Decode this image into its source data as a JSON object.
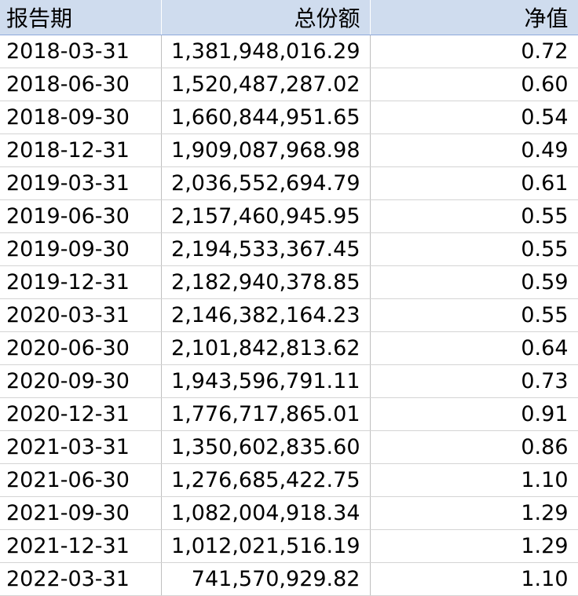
{
  "columns": [
    "报告期",
    "总份额",
    "净值"
  ],
  "rows": [
    [
      "2018-03-31",
      "1,381,948,016.29",
      "0.72"
    ],
    [
      "2018-06-30",
      "1,520,487,287.02",
      "0.60"
    ],
    [
      "2018-09-30",
      "1,660,844,951.65",
      "0.54"
    ],
    [
      "2018-12-31",
      "1,909,087,968.98",
      "0.49"
    ],
    [
      "2019-03-31",
      "2,036,552,694.79",
      "0.61"
    ],
    [
      "2019-06-30",
      "2,157,460,945.95",
      "0.55"
    ],
    [
      "2019-09-30",
      "2,194,533,367.45",
      "0.55"
    ],
    [
      "2019-12-31",
      "2,182,940,378.85",
      "0.59"
    ],
    [
      "2020-03-31",
      "2,146,382,164.23",
      "0.55"
    ],
    [
      "2020-06-30",
      "2,101,842,813.62",
      "0.64"
    ],
    [
      "2020-09-30",
      "1,943,596,791.11",
      "0.73"
    ],
    [
      "2020-12-31",
      "1,776,717,865.01",
      "0.91"
    ],
    [
      "2021-03-31",
      "1,350,602,835.60",
      "0.86"
    ],
    [
      "2021-06-30",
      "1,276,685,422.75",
      "1.10"
    ],
    [
      "2021-09-30",
      "1,082,004,918.34",
      "1.29"
    ],
    [
      "2021-12-31",
      "1,012,021,516.19",
      "1.29"
    ],
    [
      "2022-03-31",
      "741,570,929.82",
      "1.10"
    ]
  ],
  "colors": {
    "header_background": "#cfdcee",
    "grid_line": "#d4d4d4",
    "text": "#000000"
  }
}
